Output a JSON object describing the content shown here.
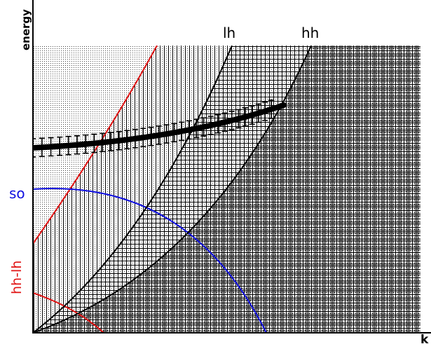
{
  "axes": {
    "y_label": "energy",
    "x_label": "k"
  },
  "curve_labels": {
    "lh": "lh",
    "hh": "hh",
    "so": "so",
    "hh_lh": "hh-lh"
  },
  "colors": {
    "red": "#e01010",
    "blue": "#1010e0",
    "black": "#000000"
  }
}
